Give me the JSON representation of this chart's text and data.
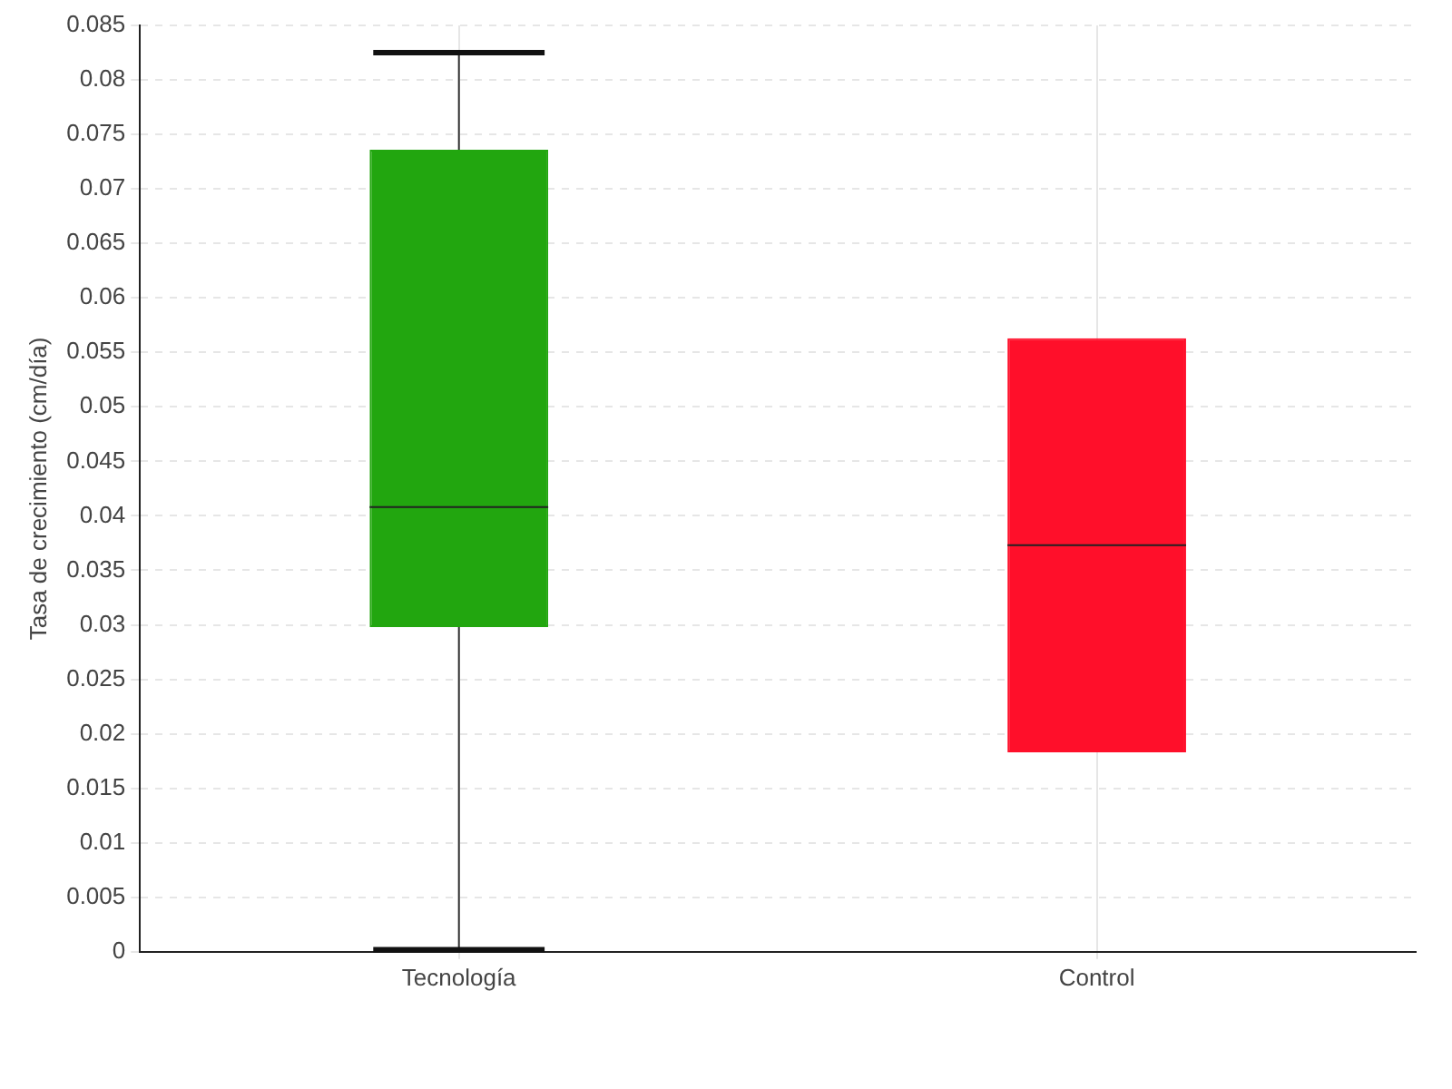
{
  "chart_data": {
    "type": "box",
    "ylabel": "Tasa de crecimiento (cm/día)",
    "categories": [
      "Tecnología",
      "Control"
    ],
    "boxes": [
      {
        "low": 0.0002,
        "q1": 0.0298,
        "median": 0.0408,
        "q3": 0.0736,
        "high": 0.0825
      },
      {
        "low": 0.0183,
        "q1": 0.0183,
        "median": 0.0373,
        "q3": 0.0563,
        "high": 0.0563
      }
    ],
    "colors": [
      "#22a60f",
      "#ff0f2a"
    ],
    "ylim": [
      0,
      0.085
    ],
    "yticks": [
      0,
      0.005,
      0.01,
      0.015,
      0.02,
      0.025,
      0.03,
      0.035,
      0.04,
      0.045,
      0.05,
      0.055,
      0.06,
      0.065,
      0.07,
      0.075,
      0.08,
      0.085
    ],
    "grid": true
  }
}
